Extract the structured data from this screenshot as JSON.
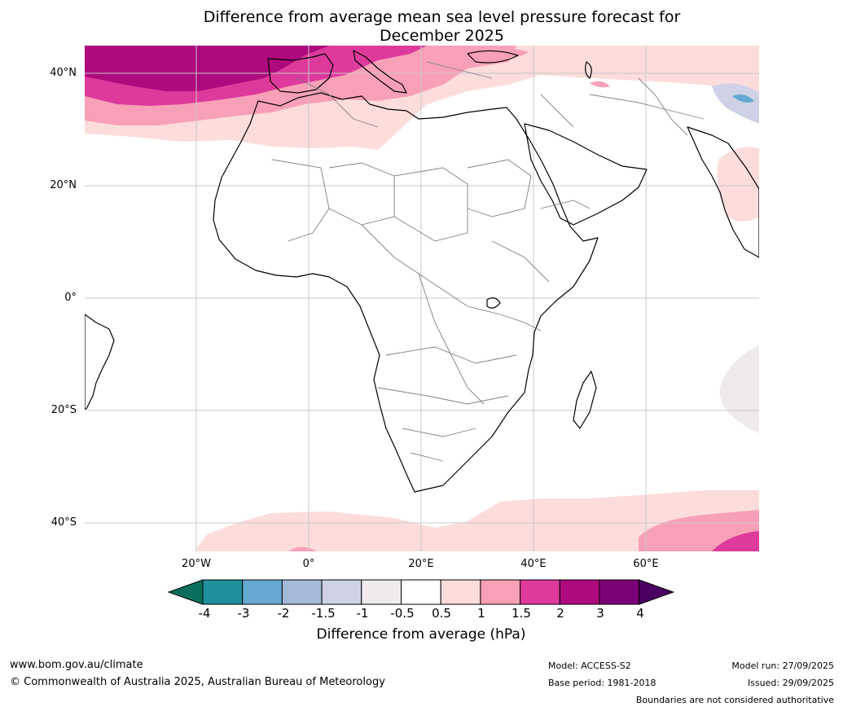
{
  "title_line1": "Difference from average mean sea level pressure forecast for",
  "title_line2": "December 2025",
  "lat_labels": [
    "40°N",
    "20°N",
    "0°",
    "20°S",
    "40°S"
  ],
  "lon_labels": [
    "20°W",
    "0°",
    "20°E",
    "40°E",
    "60°E"
  ],
  "colorbar": {
    "tick_labels": [
      "-4",
      "-3",
      "-2",
      "-1.5",
      "-1",
      "-0.5",
      "0.5",
      "1",
      "1.5",
      "2",
      "3",
      "4"
    ],
    "colors": [
      "#0b6e5c",
      "#1e8f9b",
      "#66a9d1",
      "#a5b9d9",
      "#cfd1e6",
      "#eeeaee",
      "#ffffff",
      "#fddcdc",
      "#f8a0b7",
      "#dd3a9c",
      "#ad0a7d",
      "#7a0075",
      "#4b0061"
    ],
    "label": "Difference from average (hPa)"
  },
  "footer": {
    "website": "www.bom.gov.au/climate",
    "copyright": "© Commonwealth of Australia 2025, Australian Bureau of Meteorology",
    "model": "Model: ACCESS-S2",
    "base_period": "Base period: 1981-2018",
    "model_run": "Model run: 27/09/2025",
    "issued": "Issued: 29/09/2025",
    "disclaimer": "Boundaries are not considered authoritative"
  }
}
